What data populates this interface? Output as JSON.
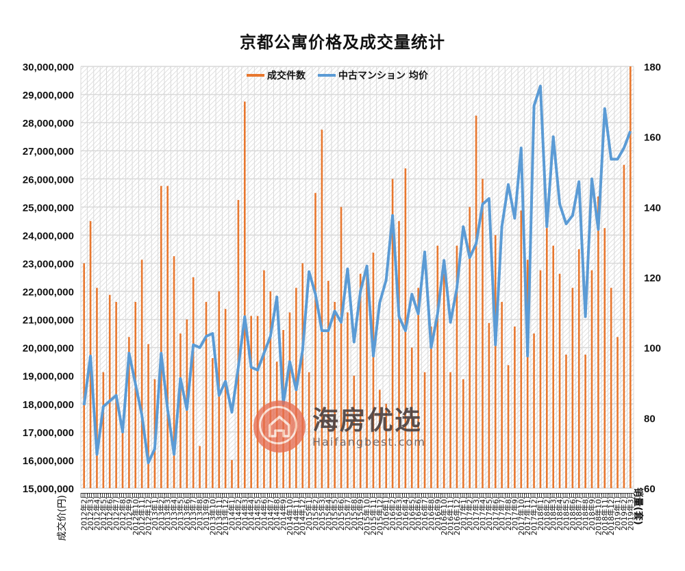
{
  "title": "京都公寓价格及成交量统计",
  "legend": {
    "bar_label": "成交件数",
    "line_label": "中古マンション 均价"
  },
  "axes": {
    "left_title": "成交价(円)",
    "right_title": "销量(套)"
  },
  "watermark": {
    "brand_cn": "海房优选",
    "brand_en": "Haifangbest.com",
    "icon": "house-in-circle-icon"
  },
  "colors": {
    "bar": "#e8772e",
    "line": "#5b9bd5",
    "grid": "#d9d9d9",
    "hatch": "#d0d0d0"
  },
  "chart_data": {
    "type": "bar+line",
    "title": "京都公寓价格及成交量统计",
    "xlabel": "",
    "ylabel": "成交价(円)",
    "y2label": "销量(套)",
    "ylim": [
      15000000,
      30000000
    ],
    "y2lim": [
      60,
      180
    ],
    "yticks": [
      15000000,
      16000000,
      17000000,
      18000000,
      19000000,
      20000000,
      21000000,
      22000000,
      23000000,
      24000000,
      25000000,
      26000000,
      27000000,
      28000000,
      29000000,
      30000000
    ],
    "ytick_labels": [
      "15,000,000",
      "16,000,000",
      "17,000,000",
      "18,000,000",
      "19,000,000",
      "20,000,000",
      "21,000,000",
      "22,000,000",
      "23,000,000",
      "24,000,000",
      "25,000,000",
      "26,000,000",
      "27,000,000",
      "28,000,000",
      "29,000,000",
      "30,000,000"
    ],
    "y2ticks": [
      60,
      80,
      100,
      120,
      140,
      160,
      180
    ],
    "grid": true,
    "legend_position": "top",
    "categories": [
      "2012年2月",
      "2012年3月",
      "2012年4月",
      "2012年5月",
      "2012年6月",
      "2012年7月",
      "2012年8月",
      "2012年9月",
      "2012年10月",
      "2012年11月",
      "2012年12月",
      "2013年1月",
      "2013年2月",
      "2013年3月",
      "2013年4月",
      "2013年5月",
      "2013年6月",
      "2013年7月",
      "2013年8月",
      "2013年9月",
      "2013年10月",
      "2013年11月",
      "2013年12月",
      "2014年1月",
      "2014年2月",
      "2014年3月",
      "2014年4月",
      "2014年5月",
      "2014年6月",
      "2014年7月",
      "2014年8月",
      "2014年9月",
      "2014年10月",
      "2014年11月",
      "2014年12月",
      "2015年1月",
      "2015年2月",
      "2015年3月",
      "2015年4月",
      "2015年5月",
      "2015年6月",
      "2015年7月",
      "2015年8月",
      "2015年9月",
      "2015年10月",
      "2015年11月",
      "2015年12月",
      "2016年1月",
      "2016年2月",
      "2016年3月",
      "2016年4月",
      "2016年5月",
      "2016年6月",
      "2016年7月",
      "2016年8月",
      "2016年9月",
      "2016年10月",
      "2016年11月",
      "2016年12月",
      "2017年1月",
      "2017年2月",
      "2017年3月",
      "2017年4月",
      "2017年5月",
      "2017年6月",
      "2017年7月",
      "2017年8月",
      "2017年9月",
      "2017年10月",
      "2017年11月",
      "2017年12月",
      "2018年1月",
      "2018年2月",
      "2018年3月",
      "2018年4月",
      "2018年5月",
      "2018年6月",
      "2018年7月",
      "2018年8月",
      "2018年9月",
      "2018年10月",
      "2018年11月",
      "2018年12月",
      "2019年1月",
      "2019年2月",
      "2019年3月"
    ],
    "series": [
      {
        "name": "成交件数",
        "type": "bar",
        "axis": "right",
        "values": [
          124,
          136,
          117,
          93,
          115,
          113,
          76,
          103,
          113,
          125,
          101,
          91,
          146,
          146,
          126,
          104,
          108,
          120,
          72,
          113,
          97,
          116,
          111,
          68,
          142,
          170,
          109,
          109,
          122,
          116,
          96,
          105,
          110,
          117,
          124,
          93,
          144,
          162,
          119,
          113,
          140,
          110,
          92,
          121,
          121,
          127,
          88,
          84,
          148,
          136,
          151,
          100,
          117,
          93,
          106,
          129,
          121,
          93,
          129,
          91,
          140,
          166,
          148,
          107,
          132,
          113,
          95,
          106,
          139,
          125,
          104,
          122,
          134,
          129,
          121,
          98,
          117,
          128,
          98,
          122,
          143,
          134,
          117,
          103,
          152,
          180
        ]
      },
      {
        "name": "中古マンション 均价",
        "type": "line",
        "axis": "left",
        "values": [
          17950000,
          19700000,
          16200000,
          17900000,
          18100000,
          18300000,
          17000000,
          19800000,
          18700000,
          17600000,
          15900000,
          16400000,
          19800000,
          17800000,
          16200000,
          18900000,
          17800000,
          20100000,
          20000000,
          20400000,
          20500000,
          18300000,
          18800000,
          17700000,
          19300000,
          21100000,
          19300000,
          19200000,
          19800000,
          20400000,
          21800000,
          18000000,
          19500000,
          18500000,
          19900000,
          22700000,
          21900000,
          20600000,
          20600000,
          21300000,
          20900000,
          22800000,
          20200000,
          22000000,
          22900000,
          19700000,
          21600000,
          22400000,
          24700000,
          21100000,
          20600000,
          21900000,
          21200000,
          23400000,
          20000000,
          21200000,
          23100000,
          20900000,
          22100000,
          24300000,
          23200000,
          23700000,
          25100000,
          25300000,
          20100000,
          24300000,
          25800000,
          24600000,
          27100000,
          19700000,
          28600000,
          29300000,
          24300000,
          27500000,
          25100000,
          24400000,
          24700000,
          25900000,
          21100000,
          26000000,
          24200000,
          28500000,
          26700000,
          26700000,
          27100000,
          27700000
        ]
      }
    ]
  }
}
